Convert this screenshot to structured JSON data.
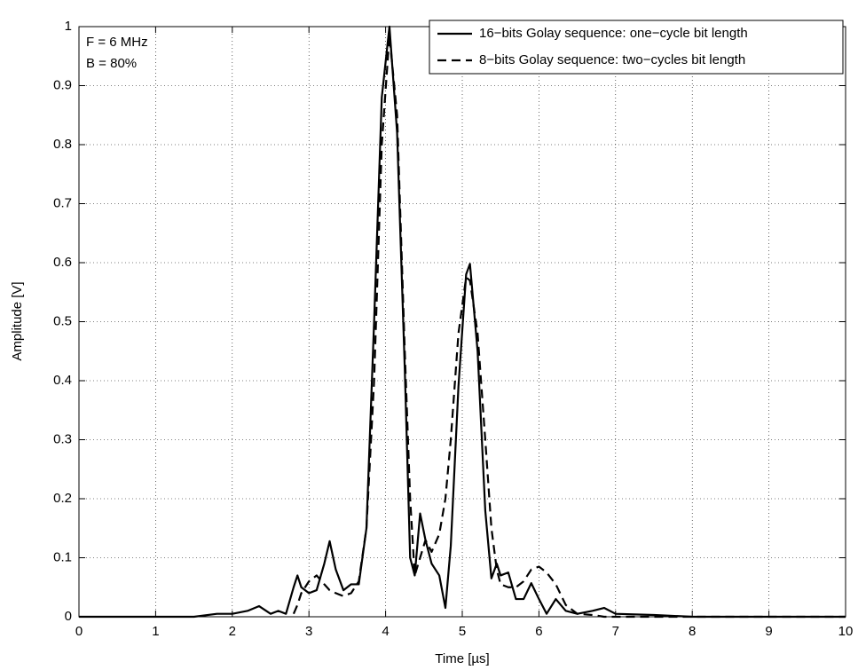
{
  "chart_data": {
    "type": "line",
    "xlabel": "Time [µs]",
    "ylabel": "Amplitude [V]",
    "annotations": [
      "F = 6 MHz",
      "B = 80%"
    ],
    "x": [
      0,
      1,
      1.5,
      1.8,
      2.0,
      2.2,
      2.35,
      2.5,
      2.6,
      2.7,
      2.8,
      2.85,
      2.9,
      3.0,
      3.1,
      3.2,
      3.27,
      3.35,
      3.45,
      3.55,
      3.65,
      3.75,
      3.85,
      3.95,
      4.05,
      4.15,
      4.25,
      4.32,
      4.38,
      4.45,
      4.52,
      4.6,
      4.7,
      4.78,
      4.85,
      4.95,
      5.05,
      5.1,
      5.2,
      5.3,
      5.38,
      5.45,
      5.5,
      5.6,
      5.7,
      5.8,
      5.9,
      6.0,
      6.1,
      6.22,
      6.35,
      6.5,
      6.7,
      6.85,
      7.0,
      7.5,
      8,
      9,
      10
    ],
    "series": [
      {
        "name": "16−bits Golay sequence: one−cycle bit length",
        "color": "#000000",
        "linestyle": "solid",
        "values": [
          0,
          0,
          0,
          0.005,
          0.005,
          0.01,
          0.018,
          0.005,
          0.01,
          0.005,
          0.05,
          0.07,
          0.05,
          0.04,
          0.045,
          0.09,
          0.128,
          0.08,
          0.045,
          0.055,
          0.055,
          0.15,
          0.5,
          0.88,
          1.0,
          0.82,
          0.42,
          0.1,
          0.07,
          0.175,
          0.13,
          0.09,
          0.07,
          0.015,
          0.12,
          0.39,
          0.58,
          0.598,
          0.45,
          0.18,
          0.065,
          0.09,
          0.07,
          0.075,
          0.03,
          0.03,
          0.057,
          0.03,
          0.005,
          0.03,
          0.01,
          0.005,
          0.01,
          0.015,
          0.005,
          0.003,
          0,
          0,
          0
        ]
      },
      {
        "name": "8−bits Golay sequence: two−cycles bit length",
        "color": "#000000",
        "linestyle": "dashed",
        "values": [
          null,
          null,
          null,
          null,
          null,
          null,
          null,
          null,
          null,
          null,
          0.005,
          0.02,
          0.04,
          0.06,
          0.07,
          0.055,
          0.045,
          0.04,
          0.035,
          0.04,
          0.06,
          0.15,
          0.4,
          0.8,
          0.985,
          0.85,
          0.45,
          0.2,
          0.07,
          0.1,
          0.13,
          0.11,
          0.14,
          0.2,
          0.3,
          0.48,
          0.575,
          0.57,
          0.48,
          0.3,
          0.15,
          0.08,
          0.055,
          0.05,
          0.05,
          0.06,
          0.08,
          0.085,
          0.075,
          0.055,
          0.02,
          0.005,
          0.003,
          0,
          0,
          0,
          0,
          0,
          0
        ]
      }
    ],
    "xlim": [
      0,
      10
    ],
    "xticks": [
      0,
      1,
      2,
      3,
      4,
      5,
      6,
      7,
      8,
      9,
      10
    ],
    "ylim": [
      0,
      1
    ],
    "yticks": [
      0,
      0.1,
      0.2,
      0.3,
      0.4,
      0.5,
      0.6,
      0.7,
      0.8,
      0.9,
      1
    ],
    "grid": true,
    "legend": "upper right"
  }
}
